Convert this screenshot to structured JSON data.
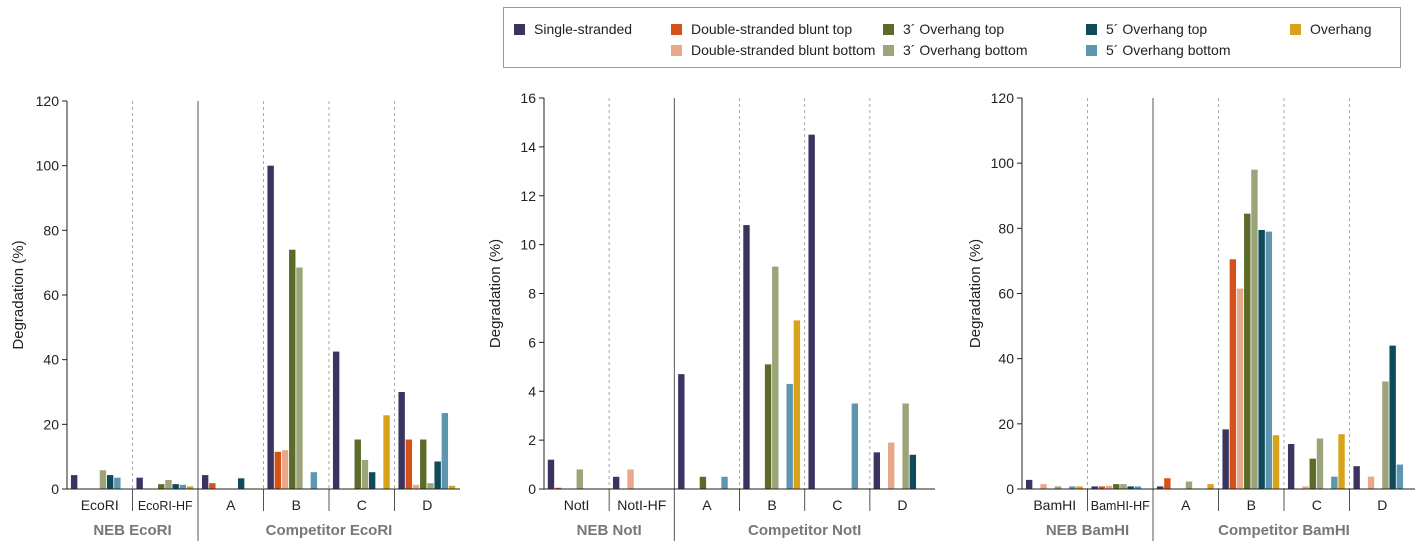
{
  "legend": [
    {
      "name": "Single-stranded",
      "color": "#3b3461"
    },
    {
      "name": "Double-stranded blunt top",
      "color": "#d4521a"
    },
    {
      "name": "Double-stranded blunt bottom",
      "color": "#e8a98a"
    },
    {
      "name": "3´ Overhang top",
      "color": "#5a6b2a"
    },
    {
      "name": "3´ Overhang bottom",
      "color": "#9ca47a"
    },
    {
      "name": "5´ Overhang top",
      "color": "#0f4a5a"
    },
    {
      "name": "5´ Overhang bottom",
      "color": "#5e96b0"
    },
    {
      "name": "Overhang",
      "color": "#d9a21a"
    }
  ],
  "chart_data": [
    {
      "type": "bar",
      "ylabel": "Degradation (%)",
      "ylim": [
        0,
        120
      ],
      "yticks": [
        0,
        20,
        40,
        60,
        80,
        100,
        120
      ],
      "categories": [
        "EcoRI",
        "EcoRI-HF",
        "A",
        "B",
        "C",
        "D"
      ],
      "groups": [
        {
          "label": "NEB EcoRI",
          "span": 2
        },
        {
          "label": "Competitor EcoRI",
          "span": 4
        }
      ],
      "series": [
        {
          "name": "Single-stranded",
          "values": [
            4.3,
            3.5,
            4.3,
            100,
            42.5,
            30
          ]
        },
        {
          "name": "Double-stranded blunt top",
          "values": [
            0,
            0,
            1.8,
            11.5,
            0,
            15.3
          ]
        },
        {
          "name": "Double-stranded blunt bottom",
          "values": [
            0,
            0,
            0,
            12,
            0,
            1.3
          ]
        },
        {
          "name": "3´ Overhang top",
          "values": [
            0,
            1.5,
            0,
            74,
            15.3,
            15.3
          ]
        },
        {
          "name": "3´ Overhang bottom",
          "values": [
            5.8,
            2.8,
            0,
            68.5,
            9,
            1.8
          ]
        },
        {
          "name": "5´ Overhang top",
          "values": [
            4.3,
            1.5,
            3.3,
            0,
            5.2,
            8.5
          ]
        },
        {
          "name": "5´ Overhang bottom",
          "values": [
            3.5,
            1.3,
            0,
            5.2,
            0,
            23.5
          ]
        },
        {
          "name": "Overhang",
          "values": [
            0,
            0.8,
            0,
            0,
            22.8,
            1
          ]
        }
      ]
    },
    {
      "type": "bar",
      "ylabel": "Degradation (%)",
      "ylim": [
        0,
        16
      ],
      "yticks": [
        0,
        2,
        4,
        6,
        8,
        10,
        12,
        14,
        16
      ],
      "categories": [
        "NotI",
        "NotI-HF",
        "A",
        "B",
        "C",
        "D"
      ],
      "groups": [
        {
          "label": "NEB NotI",
          "span": 2
        },
        {
          "label": "Competitor NotI",
          "span": 4
        }
      ],
      "series": [
        {
          "name": "Single-stranded",
          "values": [
            1.2,
            0.5,
            4.7,
            10.8,
            14.5,
            1.5
          ]
        },
        {
          "name": "Double-stranded blunt top",
          "values": [
            0.05,
            0,
            0,
            0,
            0,
            0
          ]
        },
        {
          "name": "Double-stranded blunt bottom",
          "values": [
            0,
            0.8,
            0,
            0,
            0,
            1.9
          ]
        },
        {
          "name": "3´ Overhang top",
          "values": [
            0,
            0,
            0.5,
            5.1,
            0,
            0
          ]
        },
        {
          "name": "3´ Overhang bottom",
          "values": [
            0.8,
            0,
            0,
            9.1,
            0,
            3.5
          ]
        },
        {
          "name": "5´ Overhang top",
          "values": [
            0,
            0,
            0,
            0,
            0,
            1.4
          ]
        },
        {
          "name": "5´ Overhang bottom",
          "values": [
            0,
            0,
            0.5,
            4.3,
            3.5,
            0
          ]
        },
        {
          "name": "Overhang",
          "values": [
            0,
            0,
            0,
            6.9,
            0,
            0
          ]
        }
      ]
    },
    {
      "type": "bar",
      "ylabel": "Degradation (%)",
      "ylim": [
        0,
        120
      ],
      "yticks": [
        0,
        20,
        40,
        60,
        80,
        100,
        120
      ],
      "categories": [
        "BamHI",
        "BamHI-HF",
        "A",
        "B",
        "C",
        "D"
      ],
      "groups": [
        {
          "label": "NEB BamHI",
          "span": 2
        },
        {
          "label": "Competitor BamHI",
          "span": 4
        }
      ],
      "series": [
        {
          "name": "Single-stranded",
          "values": [
            2.8,
            0.8,
            0.8,
            18.3,
            13.8,
            7
          ]
        },
        {
          "name": "Double-stranded blunt top",
          "values": [
            0,
            0.8,
            3.3,
            70.5,
            0,
            0
          ]
        },
        {
          "name": "Double-stranded blunt bottom",
          "values": [
            1.5,
            1,
            0,
            61.5,
            0.8,
            3.8
          ]
        },
        {
          "name": "3´ Overhang top",
          "values": [
            0,
            1.5,
            0,
            84.5,
            9.3,
            0
          ]
        },
        {
          "name": "3´ Overhang bottom",
          "values": [
            0.8,
            1.5,
            2.3,
            98,
            15.5,
            33
          ]
        },
        {
          "name": "5´ Overhang top",
          "values": [
            0,
            0.8,
            0,
            79.5,
            0,
            44
          ]
        },
        {
          "name": "5´ Overhang bottom",
          "values": [
            0.8,
            0.8,
            0,
            79,
            3.8,
            7.5
          ]
        },
        {
          "name": "Overhang",
          "values": [
            0.8,
            0,
            1.5,
            16.5,
            16.8,
            0
          ]
        }
      ]
    }
  ]
}
